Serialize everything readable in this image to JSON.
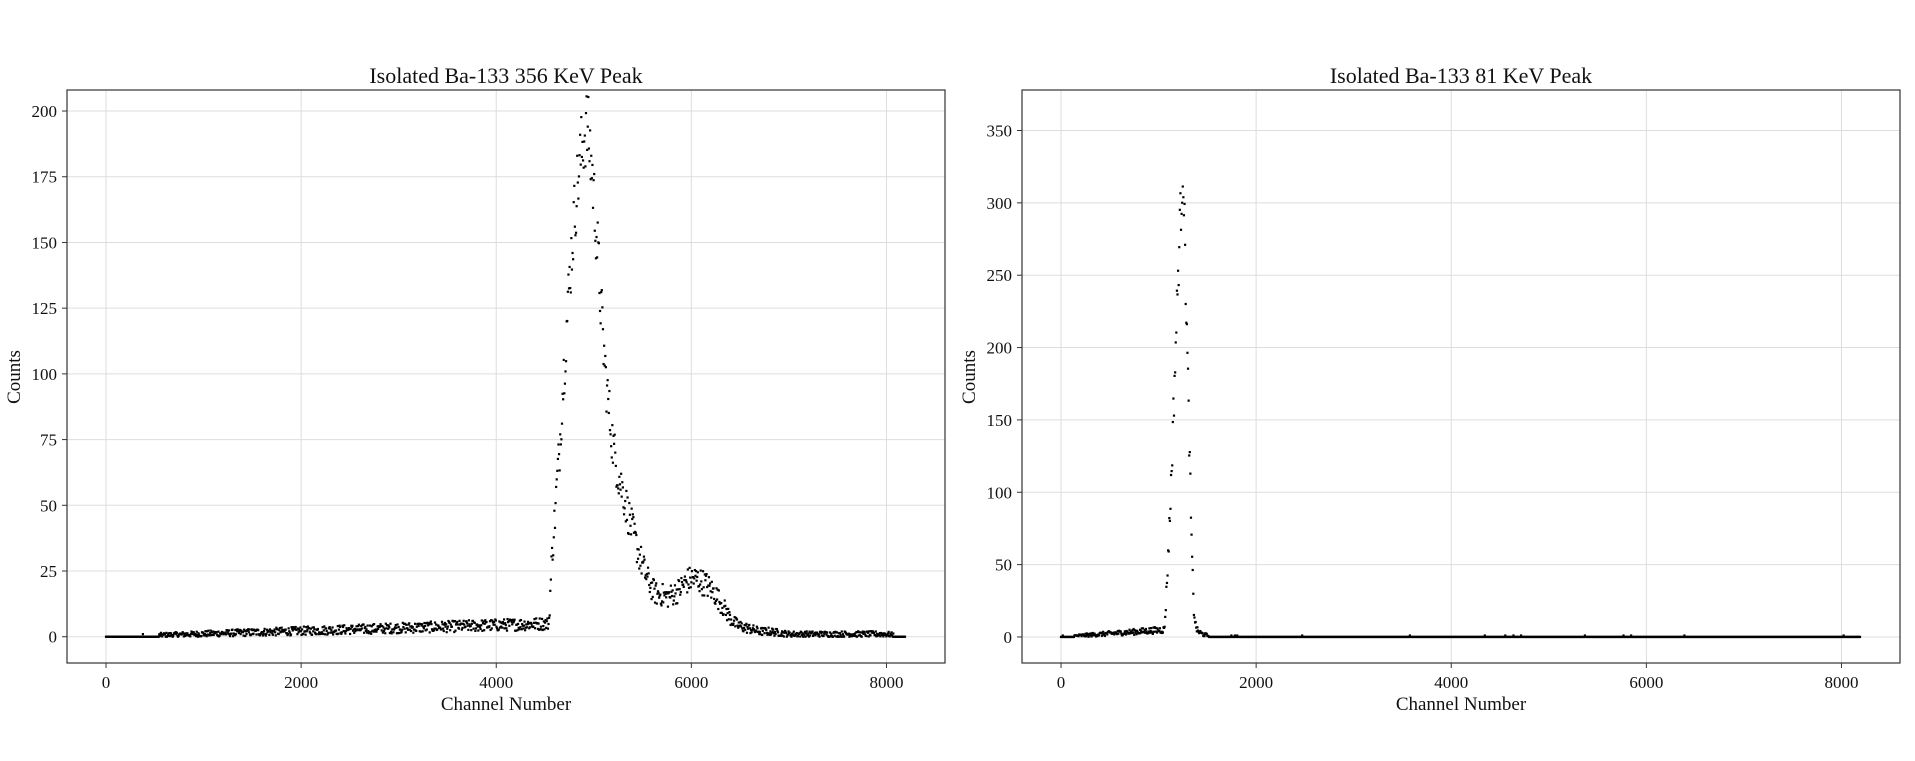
{
  "chart_data": [
    {
      "type": "scatter",
      "title": "Isolated Ba-133 356 KeV Peak",
      "xlabel": "Channel Number",
      "ylabel": "Counts",
      "xlim": [
        -400,
        8600
      ],
      "ylim": [
        -10,
        208
      ],
      "xticks": [
        0,
        2000,
        4000,
        6000,
        8000
      ],
      "yticks": [
        0,
        25,
        50,
        75,
        100,
        125,
        150,
        175,
        200
      ],
      "grid": true,
      "marker_color": "#000000",
      "series": [
        {
          "x": [
            0,
            4540,
            4570,
            4600,
            4625,
            4650,
            4675,
            4700,
            4725,
            4750,
            4775,
            4800,
            4825,
            4850,
            4875,
            4900,
            4920,
            4940,
            4960,
            4980,
            5000,
            5025,
            5050,
            5075,
            5100,
            5125,
            5150,
            5175,
            5200,
            5250,
            5300,
            5350,
            5400,
            5450,
            5500,
            5550,
            5600,
            5650,
            5700,
            5750,
            5800,
            5850,
            5900,
            5950,
            6000,
            6050,
            6100,
            6150,
            6200,
            6250,
            6300,
            6350,
            6400,
            6450,
            6500,
            6600,
            6700,
            6800,
            7000,
            7200,
            7400,
            7600,
            7800,
            8000,
            8191
          ],
          "y": [
            0,
            5,
            30,
            45,
            60,
            72,
            90,
            105,
            120,
            135,
            148,
            160,
            170,
            178,
            185,
            190,
            194,
            192,
            186,
            178,
            168,
            155,
            140,
            125,
            110,
            98,
            88,
            80,
            72,
            62,
            55,
            47,
            40,
            33,
            27,
            22,
            18,
            16,
            16,
            15,
            16,
            17,
            19,
            21,
            22,
            22,
            21,
            20,
            18,
            16,
            13,
            10,
            7,
            5,
            4,
            3,
            2,
            2,
            1,
            1,
            1,
            1,
            1,
            1,
            0
          ]
        }
      ]
    },
    {
      "type": "scatter",
      "title": "Isolated Ba-133 81 KeV Peak",
      "xlabel": "Channel Number",
      "ylabel": "Counts",
      "xlim": [
        -400,
        8600
      ],
      "ylim": [
        -18,
        378
      ],
      "xticks": [
        0,
        2000,
        4000,
        6000,
        8000
      ],
      "yticks": [
        0,
        50,
        100,
        150,
        200,
        250,
        300,
        350
      ],
      "grid": true,
      "marker_color": "#000000",
      "series": [
        {
          "x": [
            0,
            1060,
            1080,
            1100,
            1120,
            1140,
            1160,
            1180,
            1200,
            1220,
            1240,
            1250,
            1260,
            1280,
            1300,
            1320,
            1340,
            1360,
            1380,
            1400,
            1450,
            1500,
            1550,
            2000,
            8191
          ],
          "y": [
            0,
            5,
            30,
            60,
            90,
            130,
            170,
            210,
            250,
            285,
            310,
            330,
            300,
            240,
            180,
            120,
            60,
            20,
            8,
            4,
            2,
            1,
            0,
            0,
            0
          ]
        }
      ]
    }
  ]
}
